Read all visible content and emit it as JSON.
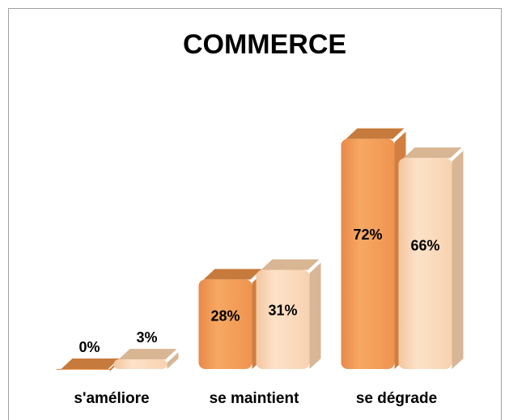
{
  "chart_data": {
    "type": "bar3d",
    "title": "COMMERCE",
    "categories": [
      "s'améliore",
      "se maintient",
      "se dégrade"
    ],
    "series": [
      {
        "color": "#f5a25d",
        "values": [
          0,
          28,
          72
        ],
        "value_labels": [
          "0%",
          "28%",
          "72%"
        ]
      },
      {
        "color": "#fbd7b8",
        "values": [
          3,
          31,
          66
        ],
        "value_labels": [
          "3%",
          "31%",
          "66%"
        ]
      }
    ]
  }
}
